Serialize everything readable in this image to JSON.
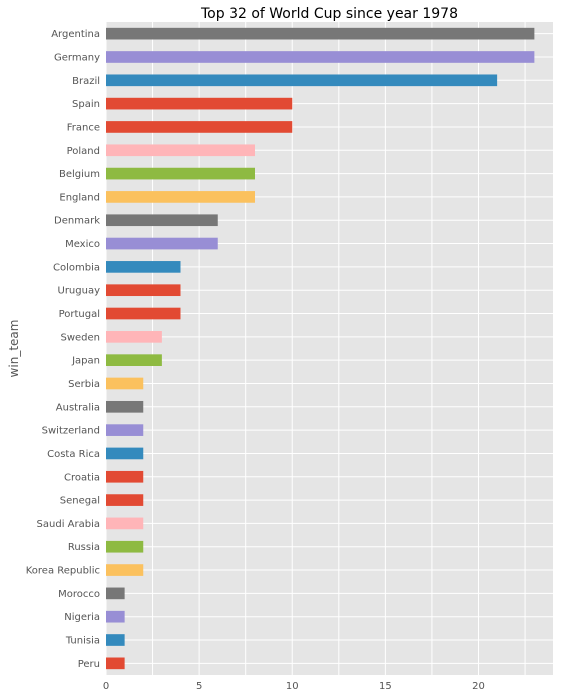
{
  "chart_data": {
    "type": "bar",
    "orientation": "horizontal",
    "title": "Top 32 of World Cup since year 1978",
    "xlabel": "",
    "ylabel": "win_team",
    "xlim": [
      0,
      24
    ],
    "xticks": [
      "0",
      "5",
      "10",
      "15",
      "20"
    ],
    "grid": true,
    "categories": [
      "Argentina",
      "Germany",
      "Brazil",
      "Spain",
      "France",
      "Poland",
      "Belgium",
      "England",
      "Denmark",
      "Mexico",
      "Colombia",
      "Uruguay",
      "Portugal",
      "Sweden",
      "Japan",
      "Serbia",
      "Australia",
      "Switzerland",
      "Costa Rica",
      "Croatia",
      "Senegal",
      "Saudi Arabia",
      "Russia",
      "Korea Republic",
      "Morocco",
      "Nigeria",
      "Tunisia",
      "Peru"
    ],
    "values": [
      23,
      23,
      21,
      10,
      10,
      8,
      8,
      8,
      6,
      6,
      4,
      4,
      4,
      3,
      3,
      2,
      2,
      2,
      2,
      2,
      2,
      2,
      2,
      2,
      1,
      1,
      1,
      1
    ],
    "colors": [
      "#777777",
      "#988ed5",
      "#348abd",
      "#e24a33",
      "#e24a33",
      "#ffb5b8",
      "#8eba42",
      "#fbc15e",
      "#777777",
      "#988ed5",
      "#348abd",
      "#e24a33",
      "#e24a33",
      "#ffb5b8",
      "#8eba42",
      "#fbc15e",
      "#777777",
      "#988ed5",
      "#348abd",
      "#e24a33",
      "#e24a33",
      "#ffb5b8",
      "#8eba42",
      "#fbc15e",
      "#777777",
      "#988ed5",
      "#348abd",
      "#e24a33"
    ],
    "background": "#e5e5e5",
    "grid_color": "#ffffff"
  }
}
